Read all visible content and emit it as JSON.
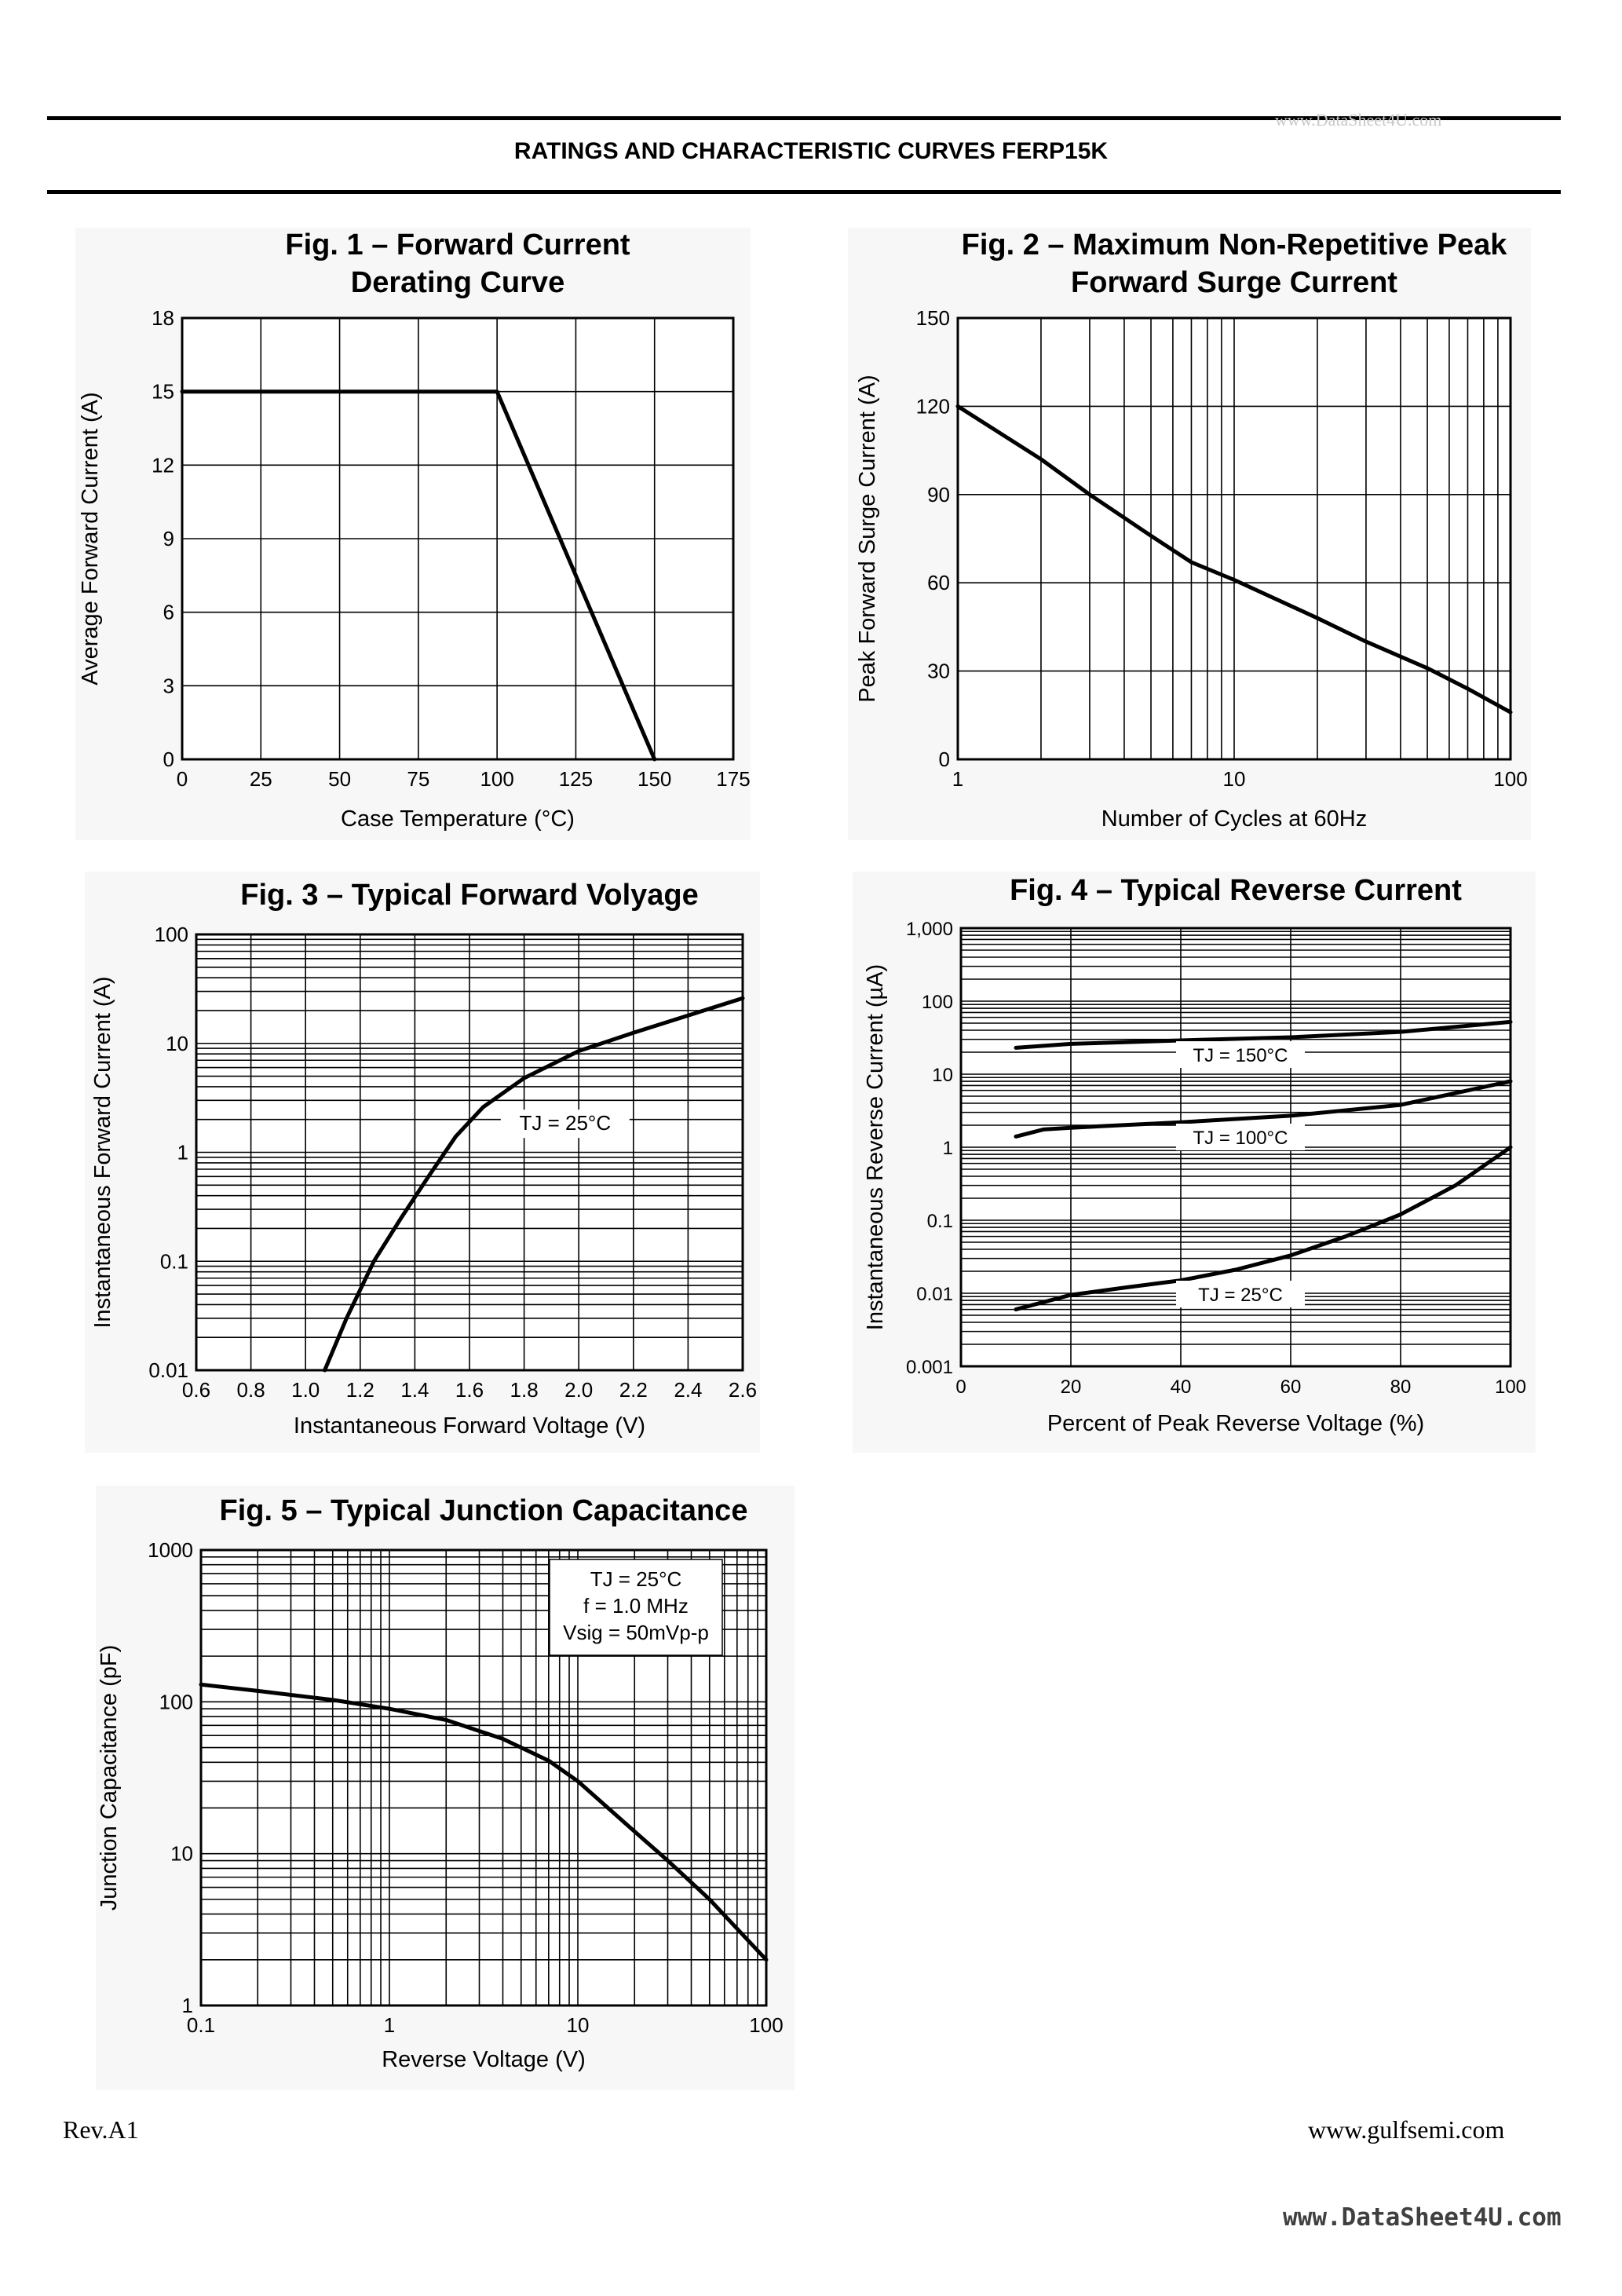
{
  "header": {
    "title": "RATINGS AND CHARACTERISTIC CURVES FERP15K",
    "watermark": "www.DataSheet4U.com"
  },
  "footer": {
    "revision": "Rev.A1",
    "url": "www.gulfsemi.com",
    "watermark": "www.DataSheet4U.com"
  },
  "chart_data": [
    {
      "id": "fig1",
      "type": "line",
      "title": "Fig. 1 – Forward Current",
      "subtitle": "Derating Curve",
      "xlabel": "Case Temperature (°C)",
      "ylabel": "Average Forward Current (A)",
      "xlim": [
        0,
        175
      ],
      "ylim": [
        0,
        18
      ],
      "xscale": "linear",
      "yscale": "linear",
      "xticks": [
        0,
        25,
        50,
        75,
        100,
        125,
        150,
        175
      ],
      "yticks": [
        0,
        3,
        6,
        9,
        12,
        15,
        18
      ],
      "grid": true,
      "series": [
        {
          "x": [
            0,
            100,
            150
          ],
          "y": [
            15,
            15,
            0
          ]
        }
      ]
    },
    {
      "id": "fig2",
      "type": "line",
      "title": "Fig. 2 – Maximum Non-Repetitive Peak",
      "subtitle": "Forward Surge Current",
      "xlabel": "Number of Cycles at 60Hz",
      "ylabel": "Peak Forward Surge Current (A)",
      "xlim": [
        1,
        100
      ],
      "ylim": [
        0,
        150
      ],
      "xscale": "log",
      "yscale": "linear",
      "xticks": [
        1,
        10,
        100
      ],
      "xticklabels": [
        "1",
        "10",
        "100"
      ],
      "yticks": [
        0,
        30,
        60,
        90,
        120,
        150
      ],
      "grid": true,
      "series": [
        {
          "x": [
            1,
            2,
            3,
            5,
            7,
            10,
            20,
            30,
            50,
            70,
            100
          ],
          "y": [
            120,
            102,
            90,
            76,
            67,
            61,
            48,
            40,
            31,
            24,
            16
          ]
        }
      ]
    },
    {
      "id": "fig3",
      "type": "line",
      "title": "Fig. 3 – Typical Forward Volyage",
      "xlabel": "Instantaneous Forward Voltage (V)",
      "ylabel": "Instantaneous Forward Current (A)",
      "xlim": [
        0.6,
        2.6
      ],
      "ylim": [
        0.01,
        100
      ],
      "xscale": "linear",
      "yscale": "log",
      "xticks": [
        0.6,
        0.8,
        1.0,
        1.2,
        1.4,
        1.6,
        1.8,
        2.0,
        2.2,
        2.4,
        2.6
      ],
      "xticklabels": [
        "0.6",
        "0.8",
        "1.0",
        "1.2",
        "1.4",
        "1.6",
        "1.8",
        "2.0",
        "2.2",
        "2.4",
        "2.6"
      ],
      "yticks": [
        0.01,
        0.1,
        1,
        10,
        100
      ],
      "yticklabels": [
        "0.01",
        "0.1",
        "1",
        "10",
        "100"
      ],
      "grid": true,
      "annotations": [
        {
          "text": "TJ = 25°C",
          "x": 1.95,
          "y": 1.6
        }
      ],
      "series": [
        {
          "x": [
            1.07,
            1.15,
            1.25,
            1.35,
            1.45,
            1.55,
            1.65,
            1.8,
            2.0,
            2.2,
            2.4,
            2.6
          ],
          "y": [
            0.01,
            0.03,
            0.1,
            0.25,
            0.6,
            1.4,
            2.6,
            4.8,
            8.5,
            12.5,
            18,
            26
          ]
        }
      ]
    },
    {
      "id": "fig4",
      "type": "line",
      "title": "Fig. 4 – Typical Reverse Current",
      "xlabel": "Percent of Peak Reverse Voltage (%)",
      "ylabel": "Instantaneous Reverse Current (µA)",
      "xlim": [
        0,
        100
      ],
      "ylim": [
        0.001,
        1000
      ],
      "xscale": "linear",
      "yscale": "log",
      "xticks": [
        0,
        20,
        40,
        60,
        80,
        100
      ],
      "yticks": [
        0.001,
        0.01,
        0.1,
        1,
        10,
        100,
        1000
      ],
      "yticklabels": [
        "0.001",
        "0.01",
        "0.1",
        "1",
        "10",
        "100",
        "1,000"
      ],
      "grid": true,
      "series": [
        {
          "name": "TJ = 150°C",
          "x": [
            10,
            20,
            40,
            60,
            80,
            100
          ],
          "y": [
            23,
            26,
            29,
            32,
            38,
            52
          ]
        },
        {
          "name": "TJ = 100°C",
          "x": [
            10,
            15,
            20,
            40,
            60,
            80,
            100
          ],
          "y": [
            1.4,
            1.75,
            1.85,
            2.2,
            2.7,
            3.8,
            8
          ]
        },
        {
          "name": "TJ = 25°C",
          "x": [
            10,
            20,
            30,
            40,
            50,
            60,
            70,
            80,
            90,
            100
          ],
          "y": [
            0.006,
            0.0095,
            0.012,
            0.015,
            0.021,
            0.033,
            0.06,
            0.12,
            0.3,
            1
          ]
        }
      ]
    },
    {
      "id": "fig5",
      "type": "line",
      "title": "Fig. 5 – Typical Junction Capacitance",
      "xlabel": "Reverse Voltage (V)",
      "ylabel": "Junction Capacitance (pF)",
      "xlim": [
        0.1,
        100
      ],
      "ylim": [
        1,
        1000
      ],
      "xscale": "log",
      "yscale": "log",
      "xticks": [
        0.1,
        1,
        10,
        100
      ],
      "xticklabels": [
        "0.1",
        "1",
        "10",
        "100"
      ],
      "yticks": [
        1,
        10,
        100,
        1000
      ],
      "yticklabels": [
        "1",
        "10",
        "100",
        "1000"
      ],
      "grid": true,
      "legend_box": [
        "TJ = 25°C",
        "f = 1.0 MHz",
        "Vsig = 50mVp-p"
      ],
      "series": [
        {
          "x": [
            0.1,
            0.2,
            0.5,
            1,
            2,
            4,
            7,
            10,
            20,
            30,
            50,
            100
          ],
          "y": [
            130,
            118,
            103,
            90,
            76,
            57,
            41,
            30,
            14,
            9,
            5,
            2
          ]
        }
      ]
    }
  ]
}
